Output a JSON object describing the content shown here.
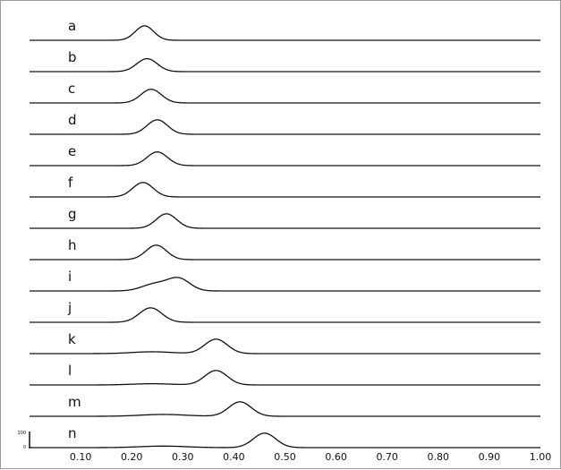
{
  "chart_data": {
    "type": "line",
    "title": "",
    "xlabel": "",
    "ylabel": "",
    "xlim": [
      0.0,
      1.0
    ],
    "x_ticks": [
      "0.10",
      "0.20",
      "0.30",
      "0.40",
      "0.50",
      "0.60",
      "0.70",
      "0.80",
      "0.90",
      "1.00"
    ],
    "y_scale": {
      "max_label": "100",
      "min_label": "0"
    },
    "grid": false,
    "line_color": "#111111",
    "series": [
      {
        "label": "a",
        "peaks": [
          {
            "center": 0.225,
            "width": 0.018,
            "height": 0.95
          }
        ]
      },
      {
        "label": "b",
        "peaks": [
          {
            "center": 0.23,
            "width": 0.02,
            "height": 0.85
          }
        ]
      },
      {
        "label": "c",
        "peaks": [
          {
            "center": 0.238,
            "width": 0.02,
            "height": 0.9
          }
        ]
      },
      {
        "label": "d",
        "peaks": [
          {
            "center": 0.25,
            "width": 0.02,
            "height": 0.95
          }
        ]
      },
      {
        "label": "e",
        "peaks": [
          {
            "center": 0.25,
            "width": 0.02,
            "height": 0.9
          }
        ]
      },
      {
        "label": "f",
        "peaks": [
          {
            "center": 0.222,
            "width": 0.02,
            "height": 0.95
          }
        ]
      },
      {
        "label": "g",
        "peaks": [
          {
            "center": 0.268,
            "width": 0.02,
            "height": 0.95
          }
        ]
      },
      {
        "label": "h",
        "peaks": [
          {
            "center": 0.248,
            "width": 0.02,
            "height": 0.95
          }
        ]
      },
      {
        "label": "i",
        "peaks": [
          {
            "center": 0.245,
            "width": 0.025,
            "height": 0.45
          },
          {
            "center": 0.292,
            "width": 0.022,
            "height": 0.8
          }
        ]
      },
      {
        "label": "j",
        "peaks": [
          {
            "center": 0.237,
            "width": 0.022,
            "height": 0.95
          }
        ]
      },
      {
        "label": "k",
        "peaks": [
          {
            "center": 0.24,
            "width": 0.04,
            "height": 0.12
          },
          {
            "center": 0.365,
            "width": 0.022,
            "height": 0.95
          }
        ]
      },
      {
        "label": "l",
        "peaks": [
          {
            "center": 0.24,
            "width": 0.04,
            "height": 0.08
          },
          {
            "center": 0.365,
            "width": 0.022,
            "height": 0.95
          }
        ]
      },
      {
        "label": "m",
        "peaks": [
          {
            "center": 0.262,
            "width": 0.045,
            "height": 0.12
          },
          {
            "center": 0.412,
            "width": 0.022,
            "height": 0.95
          }
        ]
      },
      {
        "label": "n",
        "peaks": [
          {
            "center": 0.262,
            "width": 0.045,
            "height": 0.1
          },
          {
            "center": 0.46,
            "width": 0.022,
            "height": 0.95
          }
        ]
      }
    ]
  }
}
